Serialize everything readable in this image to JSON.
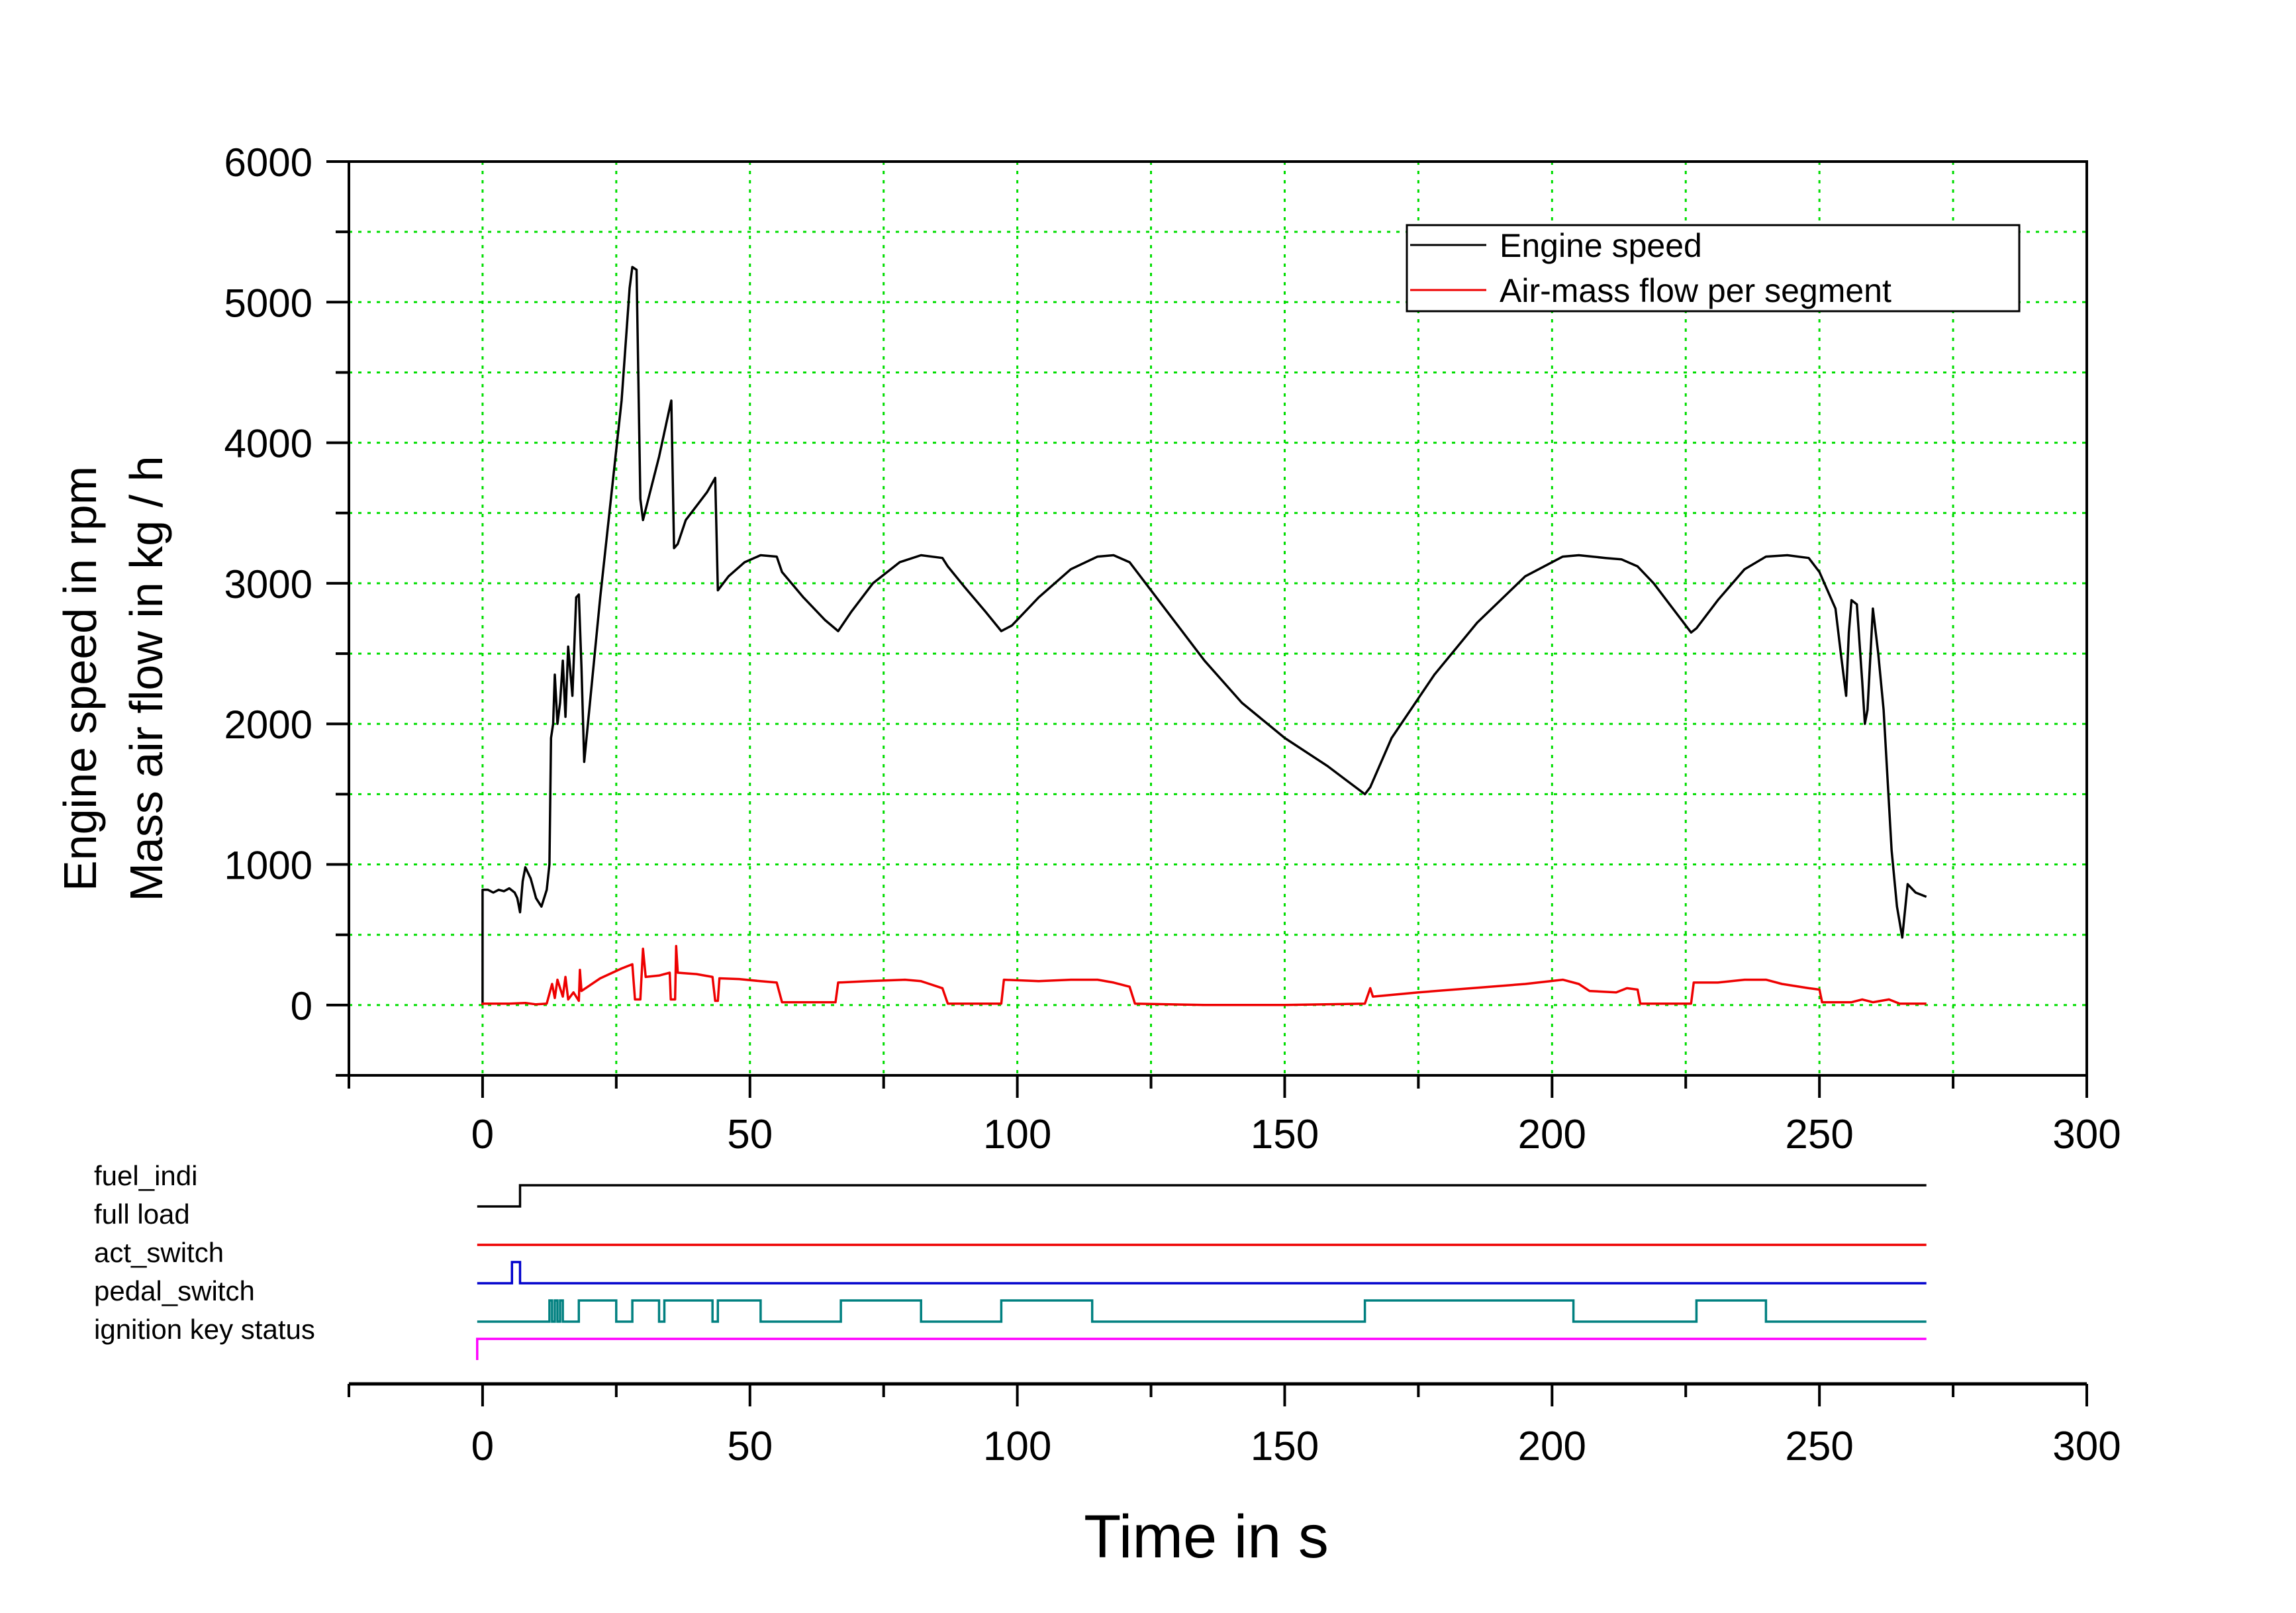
{
  "chart_data": [
    {
      "type": "line",
      "xlim": [
        -25,
        300
      ],
      "ylim": [
        -500,
        6000
      ],
      "x_ticks": [
        "0",
        "50",
        "100",
        "150",
        "200",
        "250",
        "300"
      ],
      "y_ticks": [
        "0",
        "1000",
        "2000",
        "3000",
        "4000",
        "5000",
        "6000"
      ],
      "ylabel_lines": [
        "Engine speed in rpm",
        "Mass air flow in kg / h"
      ],
      "grid": true,
      "grid_color": "#00dd00",
      "legend_position": "top-right",
      "series": [
        {
          "name": "Engine speed",
          "color": "#000000",
          "points": [
            [
              0,
              0
            ],
            [
              0,
              820
            ],
            [
              1,
              820
            ],
            [
              2,
              800
            ],
            [
              3,
              820
            ],
            [
              4,
              810
            ],
            [
              5,
              830
            ],
            [
              6,
              800
            ],
            [
              6.5,
              760
            ],
            [
              7,
              660
            ],
            [
              7.5,
              880
            ],
            [
              8,
              980
            ],
            [
              9,
              900
            ],
            [
              10,
              760
            ],
            [
              11,
              700
            ],
            [
              12,
              820
            ],
            [
              12.5,
              1000
            ],
            [
              12.8,
              1900
            ],
            [
              13.2,
              2000
            ],
            [
              13.5,
              2350
            ],
            [
              14,
              2000
            ],
            [
              14.5,
              2150
            ],
            [
              15,
              2450
            ],
            [
              15.5,
              2050
            ],
            [
              16,
              2550
            ],
            [
              16.8,
              2200
            ],
            [
              17.5,
              2900
            ],
            [
              18,
              2920
            ],
            [
              18.5,
              2400
            ],
            [
              19,
              1730
            ],
            [
              22,
              2900
            ],
            [
              26,
              4300
            ],
            [
              27.5,
              5100
            ],
            [
              28,
              5250
            ],
            [
              28.8,
              5230
            ],
            [
              29.5,
              3600
            ],
            [
              30,
              3450
            ],
            [
              31,
              3600
            ],
            [
              33,
              3900
            ],
            [
              35,
              4250
            ],
            [
              35.3,
              4300
            ],
            [
              35.8,
              3250
            ],
            [
              36.5,
              3280
            ],
            [
              38,
              3450
            ],
            [
              40,
              3550
            ],
            [
              42,
              3650
            ],
            [
              43.5,
              3750
            ],
            [
              44,
              2950
            ],
            [
              46,
              3050
            ],
            [
              49,
              3150
            ],
            [
              52,
              3200
            ],
            [
              55,
              3190
            ],
            [
              56,
              3080
            ],
            [
              60,
              2900
            ],
            [
              64,
              2740
            ],
            [
              66.5,
              2660
            ],
            [
              69,
              2800
            ],
            [
              73,
              3000
            ],
            [
              78,
              3150
            ],
            [
              82,
              3200
            ],
            [
              86,
              3180
            ],
            [
              87,
              3120
            ],
            [
              90,
              2980
            ],
            [
              94,
              2800
            ],
            [
              97,
              2660
            ],
            [
              99,
              2700
            ],
            [
              104,
              2900
            ],
            [
              110,
              3100
            ],
            [
              115,
              3190
            ],
            [
              118,
              3200
            ],
            [
              121,
              3150
            ],
            [
              122,
              3100
            ],
            [
              128,
              2800
            ],
            [
              135,
              2450
            ],
            [
              142,
              2150
            ],
            [
              150,
              1900
            ],
            [
              158,
              1700
            ],
            [
              165,
              1500
            ],
            [
              166,
              1550
            ],
            [
              170,
              1900
            ],
            [
              178,
              2350
            ],
            [
              186,
              2720
            ],
            [
              195,
              3050
            ],
            [
              202,
              3190
            ],
            [
              205,
              3200
            ],
            [
              210,
              3180
            ],
            [
              213,
              3170
            ],
            [
              216,
              3120
            ],
            [
              219,
              3000
            ],
            [
              222,
              2850
            ],
            [
              226,
              2650
            ],
            [
              227,
              2680
            ],
            [
              231,
              2880
            ],
            [
              236,
              3100
            ],
            [
              240,
              3190
            ],
            [
              244,
              3200
            ],
            [
              248,
              3180
            ],
            [
              250,
              3080
            ],
            [
              253,
              2820
            ],
            [
              254,
              2500
            ],
            [
              255,
              2200
            ],
            [
              255.5,
              2650
            ],
            [
              256,
              2880
            ],
            [
              257,
              2850
            ],
            [
              258,
              2300
            ],
            [
              258.5,
              2000
            ],
            [
              259,
              2100
            ],
            [
              260,
              2820
            ],
            [
              261,
              2500
            ],
            [
              262,
              2100
            ],
            [
              263.5,
              1100
            ],
            [
              264.5,
              700
            ],
            [
              265.5,
              480
            ],
            [
              266.5,
              860
            ],
            [
              268,
              800
            ],
            [
              270,
              770
            ]
          ]
        },
        {
          "name": "Air-mass flow per segment",
          "color": "#ee0000",
          "points": [
            [
              0,
              0
            ],
            [
              0,
              10
            ],
            [
              5,
              10
            ],
            [
              8,
              15
            ],
            [
              10,
              5
            ],
            [
              12,
              10
            ],
            [
              13,
              150
            ],
            [
              13.5,
              50
            ],
            [
              14,
              180
            ],
            [
              15,
              60
            ],
            [
              15.5,
              200
            ],
            [
              16,
              40
            ],
            [
              17,
              90
            ],
            [
              18,
              30
            ],
            [
              18.2,
              250
            ],
            [
              18.5,
              100
            ],
            [
              22,
              190
            ],
            [
              26,
              260
            ],
            [
              28,
              290
            ],
            [
              28.5,
              40
            ],
            [
              29.5,
              40
            ],
            [
              30,
              400
            ],
            [
              30.5,
              200
            ],
            [
              33,
              210
            ],
            [
              35,
              230
            ],
            [
              35.2,
              40
            ],
            [
              36,
              40
            ],
            [
              36.2,
              420
            ],
            [
              36.5,
              230
            ],
            [
              40,
              220
            ],
            [
              43,
              200
            ],
            [
              43.5,
              30
            ],
            [
              44,
              30
            ],
            [
              44.3,
              190
            ],
            [
              48,
              185
            ],
            [
              52,
              170
            ],
            [
              55,
              160
            ],
            [
              56,
              20
            ],
            [
              66,
              20
            ],
            [
              66.5,
              160
            ],
            [
              72,
              170
            ],
            [
              79,
              180
            ],
            [
              82,
              170
            ],
            [
              86,
              120
            ],
            [
              87,
              10
            ],
            [
              97,
              10
            ],
            [
              97.5,
              180
            ],
            [
              104,
              170
            ],
            [
              110,
              180
            ],
            [
              115,
              180
            ],
            [
              118,
              160
            ],
            [
              121,
              130
            ],
            [
              122,
              10
            ],
            [
              135,
              0
            ],
            [
              150,
              0
            ],
            [
              165,
              10
            ],
            [
              166,
              120
            ],
            [
              166.5,
              60
            ],
            [
              175,
              90
            ],
            [
              185,
              120
            ],
            [
              195,
              150
            ],
            [
              202,
              180
            ],
            [
              205,
              150
            ],
            [
              207,
              100
            ],
            [
              212,
              90
            ],
            [
              214,
              120
            ],
            [
              216,
              110
            ],
            [
              216.5,
              10
            ],
            [
              226,
              10
            ],
            [
              226.5,
              160
            ],
            [
              231,
              160
            ],
            [
              236,
              180
            ],
            [
              240,
              180
            ],
            [
              243,
              150
            ],
            [
              248,
              120
            ],
            [
              250,
              110
            ],
            [
              250.5,
              20
            ],
            [
              256,
              20
            ],
            [
              258,
              40
            ],
            [
              260,
              20
            ],
            [
              263,
              40
            ],
            [
              265,
              10
            ],
            [
              270,
              10
            ]
          ]
        }
      ]
    },
    {
      "type": "line",
      "xlim": [
        -25,
        300
      ],
      "x_ticks": [
        "0",
        "50",
        "100",
        "150",
        "200",
        "250",
        "300"
      ],
      "xlabel": "Time in s",
      "signals": [
        {
          "name": "fuel_indi",
          "color": "#000000",
          "transitions": [
            [
              -1,
              0
            ],
            [
              7,
              1
            ],
            [
              270,
              1
            ]
          ]
        },
        {
          "name": "full load",
          "color": "#ee0000",
          "transitions": [
            [
              -1,
              0
            ],
            [
              270,
              0
            ]
          ]
        },
        {
          "name": "act_switch",
          "color": "#0000cc",
          "transitions": [
            [
              -1,
              0
            ],
            [
              5.5,
              1
            ],
            [
              7,
              0
            ],
            [
              270,
              0
            ]
          ]
        },
        {
          "name": "pedal_switch",
          "color": "#008080",
          "transitions": [
            [
              -1,
              0
            ],
            [
              12.5,
              1
            ],
            [
              13,
              0
            ],
            [
              13.5,
              1
            ],
            [
              14,
              0
            ],
            [
              14.5,
              1
            ],
            [
              15,
              0
            ],
            [
              18,
              1
            ],
            [
              25,
              0
            ],
            [
              28,
              1
            ],
            [
              33,
              0
            ],
            [
              34,
              1
            ],
            [
              43,
              0
            ],
            [
              44,
              1
            ],
            [
              52,
              0
            ],
            [
              67,
              1
            ],
            [
              82,
              0
            ],
            [
              97,
              1
            ],
            [
              114,
              0
            ],
            [
              165,
              1
            ],
            [
              204,
              0
            ],
            [
              227,
              1
            ],
            [
              240,
              0
            ],
            [
              270,
              0
            ]
          ]
        },
        {
          "name": "ignition key status",
          "color": "#ff00ff",
          "transitions": [
            [
              -1,
              0
            ],
            [
              -1,
              1
            ],
            [
              270,
              1
            ]
          ]
        }
      ]
    }
  ]
}
